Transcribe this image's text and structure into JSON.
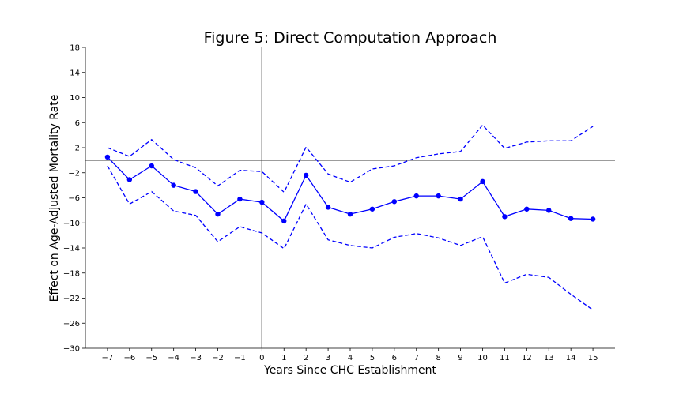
{
  "chart_data": {
    "type": "line",
    "title": "Figure 5: Direct Computation Approach",
    "xlabel": "Years Since CHC Establishment",
    "ylabel": "Effect on Age-Adjusted Mortality Rate",
    "x": [
      -7,
      -6,
      -5,
      -4,
      -3,
      -2,
      -1,
      0,
      1,
      2,
      3,
      4,
      5,
      6,
      7,
      8,
      9,
      10,
      11,
      12,
      13,
      14,
      15
    ],
    "xlim": [
      -8,
      16
    ],
    "ylim": [
      -30,
      18
    ],
    "xticks": [
      -7,
      -6,
      -5,
      -4,
      -3,
      -2,
      -1,
      0,
      1,
      2,
      3,
      4,
      5,
      6,
      7,
      8,
      9,
      10,
      11,
      12,
      13,
      14,
      15
    ],
    "yticks": [
      18,
      14,
      10,
      6,
      2,
      -2,
      -6,
      -10,
      -14,
      -18,
      -22,
      -26,
      -30
    ],
    "reference_lines": {
      "horizontal_y": 0,
      "vertical_x": 0
    },
    "grid": false,
    "color": "#0000ff",
    "series": [
      {
        "role": "estimate",
        "style": "solid-markers",
        "values": [
          0.5,
          -3.1,
          -0.9,
          -4.0,
          -5.0,
          -8.6,
          -6.2,
          -6.7,
          -9.7,
          -2.4,
          -7.5,
          -8.6,
          -7.8,
          -6.6,
          -5.7,
          -5.7,
          -6.2,
          -3.4,
          -9.0,
          -7.8,
          -8.0,
          -9.3,
          -9.4
        ]
      },
      {
        "role": "upper-bound",
        "style": "dashed",
        "values": [
          2.0,
          0.6,
          3.3,
          0.1,
          -1.2,
          -4.1,
          -1.6,
          -1.8,
          -5.1,
          2.1,
          -2.2,
          -3.5,
          -1.4,
          -0.9,
          0.4,
          1.0,
          1.4,
          5.6,
          1.9,
          2.9,
          3.1,
          3.1,
          5.4
        ]
      },
      {
        "role": "lower-bound",
        "style": "dashed",
        "values": [
          -0.9,
          -7.0,
          -5.0,
          -8.1,
          -8.8,
          -13.0,
          -10.6,
          -11.6,
          -14.1,
          -7.0,
          -12.7,
          -13.6,
          -14.0,
          -12.3,
          -11.7,
          -12.4,
          -13.6,
          -12.2,
          -19.6,
          -18.2,
          -18.7,
          -21.4,
          -23.9
        ]
      }
    ]
  }
}
